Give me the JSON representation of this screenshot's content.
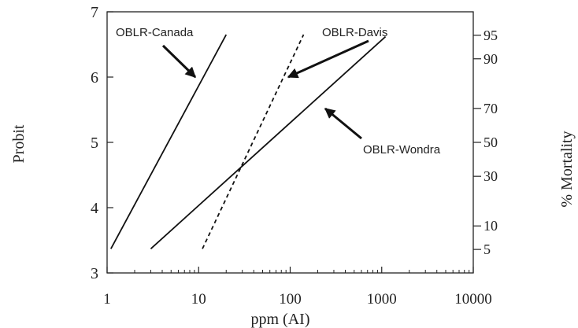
{
  "chart_data": {
    "type": "line",
    "title": "",
    "xlabel": "ppm (AI)",
    "ylabel": "Probit",
    "y2label": "% Mortality",
    "x_scale": "log",
    "xlim": [
      1,
      10000
    ],
    "ylim": [
      3,
      7
    ],
    "x_ticks": [
      1,
      10,
      100,
      1000,
      10000
    ],
    "x_tick_labels": [
      "1",
      "10",
      "100",
      "1000",
      "10000"
    ],
    "y_ticks": [
      3,
      4,
      5,
      6,
      7
    ],
    "y_tick_labels": [
      "3",
      "4",
      "5",
      "6",
      "7"
    ],
    "y2_ticks": [
      {
        "label": "5",
        "probit": 3.36
      },
      {
        "label": "10",
        "probit": 3.72
      },
      {
        "label": "30",
        "probit": 4.48
      },
      {
        "label": "50",
        "probit": 5.0
      },
      {
        "label": "70",
        "probit": 5.52
      },
      {
        "label": "90",
        "probit": 6.28
      },
      {
        "label": "95",
        "probit": 6.64
      }
    ],
    "series": [
      {
        "name": "OBLR-Canada",
        "style": "solid",
        "x": [
          1.1,
          20
        ],
        "y": [
          3.37,
          6.65
        ]
      },
      {
        "name": "OBLR-Davis",
        "style": "dashed",
        "x": [
          11,
          140
        ],
        "y": [
          3.37,
          6.65
        ]
      },
      {
        "name": "OBLR-Wondra",
        "style": "solid",
        "x": [
          3,
          1100
        ],
        "y": [
          3.37,
          6.62
        ]
      }
    ],
    "annotations": [
      {
        "text": "OBLR-Canada",
        "series": "OBLR-Canada"
      },
      {
        "text": "OBLR-Davis",
        "series": "OBLR-Davis"
      },
      {
        "text": "OBLR-Wondra",
        "series": "OBLR-Wondra"
      }
    ],
    "grid": false,
    "legend": "none"
  }
}
